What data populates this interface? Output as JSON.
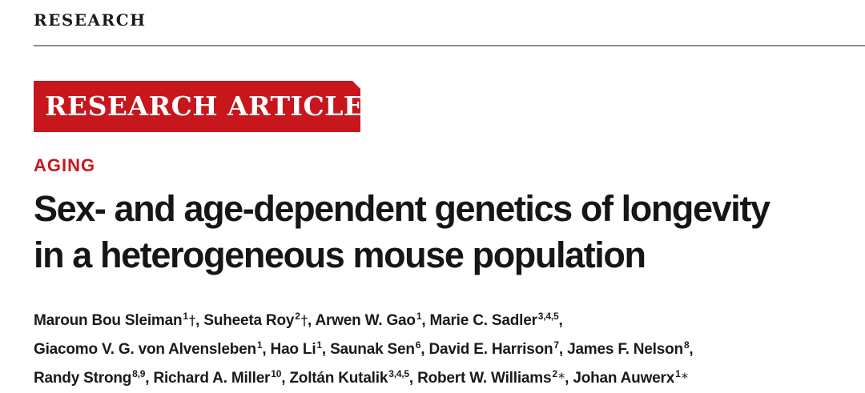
{
  "header": {
    "section": "RESEARCH"
  },
  "banner": {
    "label": "RESEARCH ARTICLE"
  },
  "subject": "AGING",
  "title": {
    "line1": "Sex- and age-dependent genetics of longevity",
    "line2": "in a heterogeneous mouse population"
  },
  "authors": [
    {
      "name": "Maroun Bou Sleiman",
      "aff": "1",
      "mark": "†",
      "sep": ", "
    },
    {
      "name": "Suheeta Roy",
      "aff": "2",
      "mark": "†",
      "sep": ", "
    },
    {
      "name": "Arwen W. Gao",
      "aff": "1",
      "mark": "",
      "sep": ", "
    },
    {
      "name": "Marie C. Sadler",
      "aff": "3,4,5",
      "mark": "",
      "sep": ","
    },
    {
      "name": "Giacomo V. G. von Alvensleben",
      "aff": "1",
      "mark": "",
      "sep": ", "
    },
    {
      "name": "Hao Li",
      "aff": "1",
      "mark": "",
      "sep": ", "
    },
    {
      "name": "Saunak Sen",
      "aff": "6",
      "mark": "",
      "sep": ", "
    },
    {
      "name": "David E. Harrison",
      "aff": "7",
      "mark": "",
      "sep": ", "
    },
    {
      "name": "James F. Nelson",
      "aff": "8",
      "mark": "",
      "sep": ","
    },
    {
      "name": "Randy Strong",
      "aff": "8,9",
      "mark": "",
      "sep": ", "
    },
    {
      "name": "Richard A. Miller",
      "aff": "10",
      "mark": "",
      "sep": ", "
    },
    {
      "name": "Zoltán Kutalik",
      "aff": "3,4,5",
      "mark": "",
      "sep": ", "
    },
    {
      "name": "Robert W. Williams",
      "aff": "2",
      "mark": "*",
      "sep": ", "
    },
    {
      "name": "Johan Auwerx",
      "aff": "1",
      "mark": "*",
      "sep": ""
    }
  ],
  "colors": {
    "accent": "#c8161d",
    "text": "#161616",
    "rule": "#8a8a8a"
  }
}
